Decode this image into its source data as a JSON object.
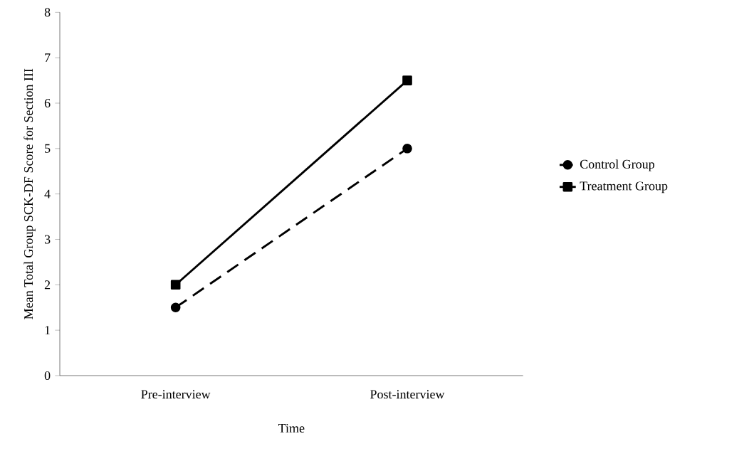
{
  "chart_data": {
    "type": "line",
    "xlabel": "Time",
    "ylabel": "Mean Total Group SCK-DF Score for Section III",
    "categories": [
      "Pre-interview",
      "Post-interview"
    ],
    "series": [
      {
        "name": "Control Group",
        "color": "#000000",
        "values": [
          1.5,
          5
        ],
        "marker": "circle",
        "line_style": "dashed"
      },
      {
        "name": "Treatment Group",
        "color": "#000000",
        "values": [
          2,
          6.5
        ],
        "marker": "square",
        "line_style": "solid"
      }
    ],
    "ylim": [
      0,
      8
    ],
    "yticks": [
      0,
      1,
      2,
      3,
      4,
      5,
      6,
      7,
      8
    ],
    "grid": false,
    "legend": "right"
  }
}
